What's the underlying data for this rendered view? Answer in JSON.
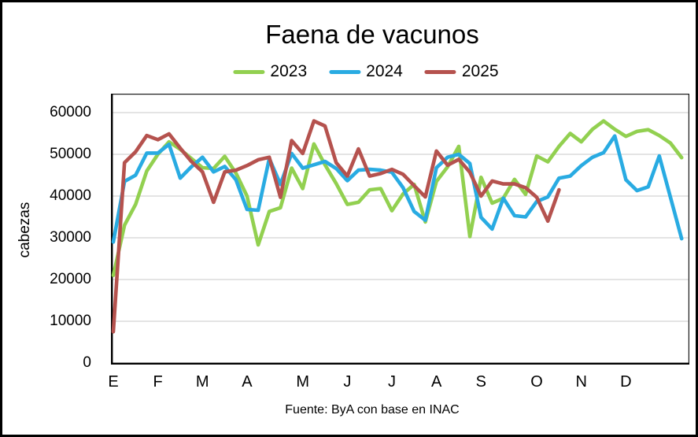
{
  "chart_data": {
    "type": "line",
    "title": "Faena de vacunos",
    "ylabel": "cabezas",
    "source": "Fuente: ByA con base en INAC",
    "ylim": [
      0,
      65000
    ],
    "ytick_max": 60000,
    "ytick_step": 10000,
    "grid": "horizontal",
    "legend_position": "top",
    "x_unit": "week",
    "months": [
      "E",
      "F",
      "M",
      "A",
      "M",
      "J",
      "J",
      "A",
      "S",
      "O",
      "N",
      "D"
    ],
    "month_week_index": [
      0,
      4,
      8,
      12,
      17,
      21,
      25,
      29,
      33,
      38,
      42,
      46
    ],
    "weeks": 52,
    "series": [
      {
        "name": "2023",
        "color": "#92d050",
        "values": [
          21000,
          33000,
          38000,
          46000,
          50000,
          53000,
          51200,
          49000,
          46800,
          46600,
          49500,
          45500,
          40000,
          28300,
          36300,
          37200,
          46700,
          41800,
          52500,
          47500,
          43000,
          38000,
          38500,
          41500,
          41800,
          36500,
          40500,
          42800,
          33800,
          43500,
          47000,
          51900,
          30300,
          44500,
          38300,
          39500,
          44000,
          40400,
          49600,
          48200,
          51900,
          55000,
          53000,
          56000,
          58000,
          56000,
          54300,
          55500,
          55900,
          54500,
          52700,
          49200
        ]
      },
      {
        "name": "2024",
        "color": "#29abe2",
        "values": [
          29000,
          43500,
          45000,
          50300,
          50300,
          52400,
          44300,
          47000,
          49300,
          45800,
          47100,
          43900,
          36800,
          36600,
          49000,
          42800,
          50200,
          46700,
          47500,
          48300,
          46600,
          43700,
          46200,
          46400,
          46200,
          45700,
          42000,
          36300,
          34200,
          46800,
          49300,
          50000,
          47800,
          34900,
          32100,
          39500,
          35300,
          35000,
          38700,
          39800,
          44300,
          44800,
          47300,
          49300,
          50400,
          54400,
          43900,
          41300,
          42200,
          49600,
          39700,
          29800
        ]
      },
      {
        "name": "2025",
        "color": "#b5524e",
        "values": [
          7500,
          48000,
          50600,
          54500,
          53500,
          54900,
          51500,
          48300,
          45800,
          38500,
          45800,
          46200,
          47300,
          48700,
          49300,
          39700,
          53300,
          50200,
          58000,
          56800,
          48000,
          44800,
          51300,
          44800,
          45400,
          46400,
          45200,
          42500,
          39800,
          50800,
          47400,
          48800,
          45700,
          40000,
          43600,
          42900,
          42900,
          42000,
          39700,
          34000,
          41500,
          null,
          null,
          null,
          null,
          null,
          null,
          null,
          null,
          null,
          null,
          null
        ]
      }
    ],
    "colors": {
      "gridline": "#d3d3d3",
      "plot_border": "#1a1a1a",
      "axis": "#000000",
      "text": "#000000"
    }
  }
}
